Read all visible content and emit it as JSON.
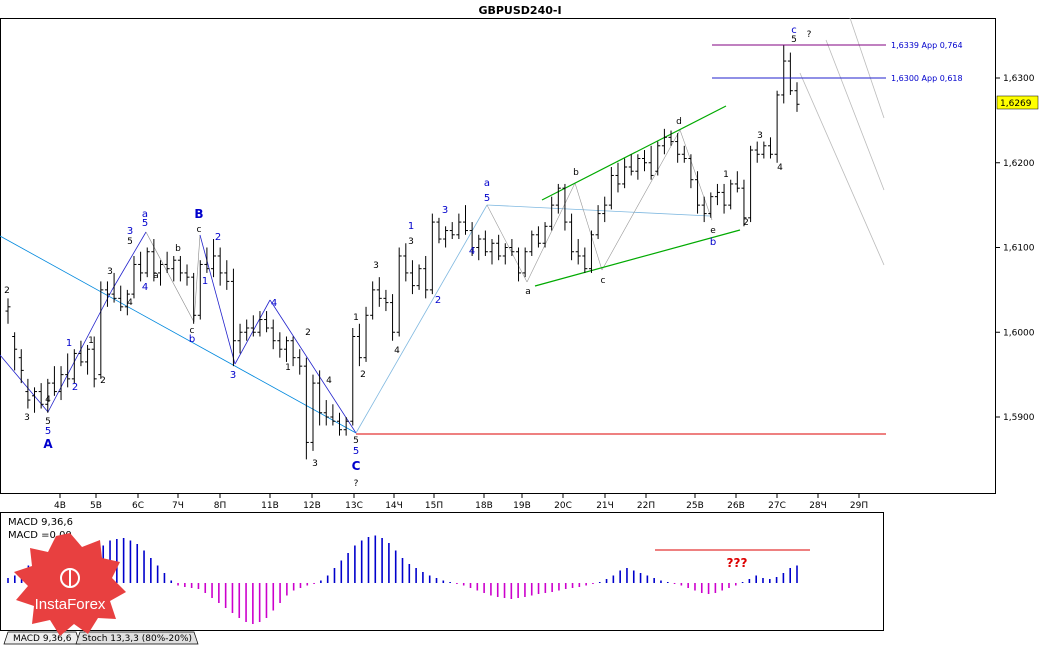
{
  "chart_data": [
    {
      "type": "candlestick",
      "title": "GBPUSD240-I",
      "y_ticks": [
        "1,5900",
        "1,6000",
        "1,6100",
        "1,6200",
        "1,6300"
      ],
      "ylim": [
        1.584,
        1.634
      ],
      "current_price": "1,6269",
      "x_ticks": [
        "4В",
        "5В",
        "6С",
        "7Ч",
        "8П",
        "11В",
        "12В",
        "13С",
        "14Ч",
        "15П",
        "18В",
        "19В",
        "20С",
        "21Ч",
        "22П",
        "25В",
        "26В",
        "27С",
        "28Ч",
        "29П"
      ],
      "bars": [
        {
          "o": 1.6025,
          "h": 1.604,
          "l": 1.601,
          "c": 1.603
        },
        {
          "o": 1.5995,
          "h": 1.6,
          "l": 1.5955,
          "c": 1.598
        },
        {
          "o": 1.597,
          "h": 1.598,
          "l": 1.594,
          "c": 1.5955
        },
        {
          "o": 1.593,
          "h": 1.5945,
          "l": 1.591,
          "c": 1.592
        },
        {
          "o": 1.5925,
          "h": 1.5935,
          "l": 1.5905,
          "c": 1.593
        },
        {
          "o": 1.593,
          "h": 1.594,
          "l": 1.591,
          "c": 1.5915
        },
        {
          "o": 1.5915,
          "h": 1.5945,
          "l": 1.5905,
          "c": 1.594
        },
        {
          "o": 1.594,
          "h": 1.596,
          "l": 1.5925,
          "c": 1.593
        },
        {
          "o": 1.593,
          "h": 1.596,
          "l": 1.592,
          "c": 1.595
        },
        {
          "o": 1.595,
          "h": 1.5975,
          "l": 1.5935,
          "c": 1.5945
        },
        {
          "o": 1.5945,
          "h": 1.598,
          "l": 1.594,
          "c": 1.5975
        },
        {
          "o": 1.5975,
          "h": 1.599,
          "l": 1.596,
          "c": 1.5965
        },
        {
          "o": 1.5965,
          "h": 1.5985,
          "l": 1.595,
          "c": 1.598
        },
        {
          "o": 1.598,
          "h": 1.5995,
          "l": 1.5935,
          "c": 1.5945
        },
        {
          "o": 1.595,
          "h": 1.606,
          "l": 1.5945,
          "c": 1.605
        },
        {
          "o": 1.605,
          "h": 1.606,
          "l": 1.603,
          "c": 1.6045
        },
        {
          "o": 1.6045,
          "h": 1.607,
          "l": 1.6035,
          "c": 1.604
        },
        {
          "o": 1.604,
          "h": 1.6055,
          "l": 1.6025,
          "c": 1.603
        },
        {
          "o": 1.603,
          "h": 1.605,
          "l": 1.602,
          "c": 1.6045
        },
        {
          "o": 1.6045,
          "h": 1.609,
          "l": 1.604,
          "c": 1.608
        },
        {
          "o": 1.608,
          "h": 1.6095,
          "l": 1.606,
          "c": 1.607
        },
        {
          "o": 1.607,
          "h": 1.61,
          "l": 1.6065,
          "c": 1.6095
        },
        {
          "o": 1.6095,
          "h": 1.611,
          "l": 1.606,
          "c": 1.607
        },
        {
          "o": 1.607,
          "h": 1.6085,
          "l": 1.6055,
          "c": 1.608
        },
        {
          "o": 1.608,
          "h": 1.6095,
          "l": 1.607,
          "c": 1.6075
        },
        {
          "o": 1.6075,
          "h": 1.609,
          "l": 1.606,
          "c": 1.6085
        },
        {
          "o": 1.6085,
          "h": 1.609,
          "l": 1.606,
          "c": 1.607
        },
        {
          "o": 1.607,
          "h": 1.608,
          "l": 1.6055,
          "c": 1.6065
        },
        {
          "o": 1.6065,
          "h": 1.607,
          "l": 1.601,
          "c": 1.602
        },
        {
          "o": 1.602,
          "h": 1.6085,
          "l": 1.6015,
          "c": 1.608
        },
        {
          "o": 1.608,
          "h": 1.61,
          "l": 1.607,
          "c": 1.6075
        },
        {
          "o": 1.6075,
          "h": 1.611,
          "l": 1.6065,
          "c": 1.609
        },
        {
          "o": 1.609,
          "h": 1.61,
          "l": 1.6055,
          "c": 1.607
        },
        {
          "o": 1.607,
          "h": 1.6085,
          "l": 1.605,
          "c": 1.606
        },
        {
          "o": 1.606,
          "h": 1.6075,
          "l": 1.596,
          "c": 1.599
        },
        {
          "o": 1.599,
          "h": 1.601,
          "l": 1.5975,
          "c": 1.6
        },
        {
          "o": 1.6,
          "h": 1.6015,
          "l": 1.599,
          "c": 1.6005
        },
        {
          "o": 1.6005,
          "h": 1.602,
          "l": 1.5995,
          "c": 1.6
        },
        {
          "o": 1.6,
          "h": 1.6025,
          "l": 1.5995,
          "c": 1.6015
        },
        {
          "o": 1.6015,
          "h": 1.6025,
          "l": 1.6,
          "c": 1.6005
        },
        {
          "o": 1.6005,
          "h": 1.6015,
          "l": 1.598,
          "c": 1.599
        },
        {
          "o": 1.599,
          "h": 1.6,
          "l": 1.597,
          "c": 1.598
        },
        {
          "o": 1.598,
          "h": 1.5995,
          "l": 1.5965,
          "c": 1.599
        },
        {
          "o": 1.599,
          "h": 1.5995,
          "l": 1.596,
          "c": 1.597
        },
        {
          "o": 1.597,
          "h": 1.598,
          "l": 1.595,
          "c": 1.596
        },
        {
          "o": 1.596,
          "h": 1.597,
          "l": 1.585,
          "c": 1.587
        },
        {
          "o": 1.587,
          "h": 1.595,
          "l": 1.586,
          "c": 1.594
        },
        {
          "o": 1.594,
          "h": 1.5955,
          "l": 1.589,
          "c": 1.5905
        },
        {
          "o": 1.5905,
          "h": 1.592,
          "l": 1.589,
          "c": 1.59
        },
        {
          "o": 1.59,
          "h": 1.5915,
          "l": 1.589,
          "c": 1.5895
        },
        {
          "o": 1.5895,
          "h": 1.5905,
          "l": 1.5878,
          "c": 1.5885
        },
        {
          "o": 1.5885,
          "h": 1.59,
          "l": 1.5878,
          "c": 1.5895
        },
        {
          "o": 1.5895,
          "h": 1.6005,
          "l": 1.589,
          "c": 1.5995
        },
        {
          "o": 1.5995,
          "h": 1.601,
          "l": 1.596,
          "c": 1.597
        },
        {
          "o": 1.597,
          "h": 1.603,
          "l": 1.5965,
          "c": 1.602
        },
        {
          "o": 1.602,
          "h": 1.606,
          "l": 1.6015,
          "c": 1.605
        },
        {
          "o": 1.605,
          "h": 1.6065,
          "l": 1.603,
          "c": 1.604
        },
        {
          "o": 1.604,
          "h": 1.605,
          "l": 1.6025,
          "c": 1.6035
        },
        {
          "o": 1.6035,
          "h": 1.6045,
          "l": 1.599,
          "c": 1.6
        },
        {
          "o": 1.6,
          "h": 1.61,
          "l": 1.5995,
          "c": 1.609
        },
        {
          "o": 1.609,
          "h": 1.6105,
          "l": 1.606,
          "c": 1.607
        },
        {
          "o": 1.607,
          "h": 1.6085,
          "l": 1.6045,
          "c": 1.6055
        },
        {
          "o": 1.6055,
          "h": 1.608,
          "l": 1.605,
          "c": 1.6075
        },
        {
          "o": 1.6075,
          "h": 1.609,
          "l": 1.604,
          "c": 1.605
        },
        {
          "o": 1.605,
          "h": 1.614,
          "l": 1.6045,
          "c": 1.613
        },
        {
          "o": 1.613,
          "h": 1.6135,
          "l": 1.6105,
          "c": 1.611
        },
        {
          "o": 1.611,
          "h": 1.6125,
          "l": 1.61,
          "c": 1.612
        },
        {
          "o": 1.612,
          "h": 1.613,
          "l": 1.611,
          "c": 1.6115
        },
        {
          "o": 1.6115,
          "h": 1.614,
          "l": 1.611,
          "c": 1.613
        },
        {
          "o": 1.613,
          "h": 1.615,
          "l": 1.6115,
          "c": 1.612
        },
        {
          "o": 1.612,
          "h": 1.613,
          "l": 1.609,
          "c": 1.61
        },
        {
          "o": 1.61,
          "h": 1.6115,
          "l": 1.6085,
          "c": 1.611
        },
        {
          "o": 1.611,
          "h": 1.612,
          "l": 1.609,
          "c": 1.6095
        },
        {
          "o": 1.6095,
          "h": 1.611,
          "l": 1.608,
          "c": 1.6105
        },
        {
          "o": 1.6105,
          "h": 1.6115,
          "l": 1.6085,
          "c": 1.609
        },
        {
          "o": 1.609,
          "h": 1.6105,
          "l": 1.608,
          "c": 1.61
        },
        {
          "o": 1.61,
          "h": 1.611,
          "l": 1.609,
          "c": 1.6095
        },
        {
          "o": 1.6095,
          "h": 1.61,
          "l": 1.606,
          "c": 1.607
        },
        {
          "o": 1.607,
          "h": 1.61,
          "l": 1.6065,
          "c": 1.6095
        },
        {
          "o": 1.6095,
          "h": 1.612,
          "l": 1.609,
          "c": 1.6115
        },
        {
          "o": 1.6115,
          "h": 1.6125,
          "l": 1.61,
          "c": 1.6105
        },
        {
          "o": 1.6105,
          "h": 1.613,
          "l": 1.61,
          "c": 1.6125
        },
        {
          "o": 1.6125,
          "h": 1.616,
          "l": 1.612,
          "c": 1.615
        },
        {
          "o": 1.615,
          "h": 1.6175,
          "l": 1.614,
          "c": 1.617
        },
        {
          "o": 1.617,
          "h": 1.6175,
          "l": 1.612,
          "c": 1.613
        },
        {
          "o": 1.613,
          "h": 1.614,
          "l": 1.6085,
          "c": 1.6095
        },
        {
          "o": 1.6095,
          "h": 1.611,
          "l": 1.608,
          "c": 1.609
        },
        {
          "o": 1.609,
          "h": 1.61,
          "l": 1.607,
          "c": 1.6075
        },
        {
          "o": 1.6075,
          "h": 1.612,
          "l": 1.607,
          "c": 1.6115
        },
        {
          "o": 1.6115,
          "h": 1.615,
          "l": 1.611,
          "c": 1.614
        },
        {
          "o": 1.614,
          "h": 1.616,
          "l": 1.613,
          "c": 1.615
        },
        {
          "o": 1.615,
          "h": 1.6195,
          "l": 1.6145,
          "c": 1.6185
        },
        {
          "o": 1.6185,
          "h": 1.62,
          "l": 1.6165,
          "c": 1.6175
        },
        {
          "o": 1.6175,
          "h": 1.6205,
          "l": 1.617,
          "c": 1.6195
        },
        {
          "o": 1.6195,
          "h": 1.621,
          "l": 1.6185,
          "c": 1.619
        },
        {
          "o": 1.619,
          "h": 1.621,
          "l": 1.618,
          "c": 1.6205
        },
        {
          "o": 1.6205,
          "h": 1.6215,
          "l": 1.619,
          "c": 1.62
        },
        {
          "o": 1.62,
          "h": 1.622,
          "l": 1.618,
          "c": 1.6185
        },
        {
          "o": 1.619,
          "h": 1.6225,
          "l": 1.6185,
          "c": 1.622
        },
        {
          "o": 1.622,
          "h": 1.624,
          "l": 1.621,
          "c": 1.623
        },
        {
          "o": 1.623,
          "h": 1.6238,
          "l": 1.622,
          "c": 1.6225
        },
        {
          "o": 1.6225,
          "h": 1.6235,
          "l": 1.62,
          "c": 1.621
        },
        {
          "o": 1.621,
          "h": 1.622,
          "l": 1.62,
          "c": 1.6205
        },
        {
          "o": 1.6205,
          "h": 1.621,
          "l": 1.617,
          "c": 1.618
        },
        {
          "o": 1.618,
          "h": 1.619,
          "l": 1.614,
          "c": 1.615
        },
        {
          "o": 1.615,
          "h": 1.616,
          "l": 1.613,
          "c": 1.614
        },
        {
          "o": 1.614,
          "h": 1.6165,
          "l": 1.6135,
          "c": 1.616
        },
        {
          "o": 1.616,
          "h": 1.6175,
          "l": 1.615,
          "c": 1.6165
        },
        {
          "o": 1.6165,
          "h": 1.6175,
          "l": 1.614,
          "c": 1.615
        },
        {
          "o": 1.615,
          "h": 1.618,
          "l": 1.6145,
          "c": 1.6175
        },
        {
          "o": 1.6175,
          "h": 1.619,
          "l": 1.6165,
          "c": 1.617
        },
        {
          "o": 1.617,
          "h": 1.618,
          "l": 1.6125,
          "c": 1.6135
        },
        {
          "o": 1.6135,
          "h": 1.622,
          "l": 1.613,
          "c": 1.6215
        },
        {
          "o": 1.6215,
          "h": 1.6225,
          "l": 1.62,
          "c": 1.621
        },
        {
          "o": 1.621,
          "h": 1.6225,
          "l": 1.6205,
          "c": 1.622
        },
        {
          "o": 1.622,
          "h": 1.623,
          "l": 1.6205,
          "c": 1.621
        },
        {
          "o": 1.621,
          "h": 1.6285,
          "l": 1.62,
          "c": 1.628
        },
        {
          "o": 1.628,
          "h": 1.6339,
          "l": 1.627,
          "c": 1.632
        },
        {
          "o": 1.632,
          "h": 1.633,
          "l": 1.628,
          "c": 1.6285
        },
        {
          "o": 1.6285,
          "h": 1.6295,
          "l": 1.626,
          "c": 1.6269
        }
      ],
      "levels": [
        {
          "value": 1.6339,
          "label": "1,6339 App 0,764"
        },
        {
          "value": 1.63,
          "label": "1,6300 App 0,618"
        },
        {
          "value": 1.5877,
          "label": ""
        }
      ]
    },
    {
      "type": "histogram",
      "legend": [
        "MACD 9,36,6",
        "MACD =0,00"
      ],
      "values": [
        0.1,
        0.15,
        0.25,
        0.35,
        0.42,
        0.4,
        0.3,
        0.2,
        0.15,
        0.15,
        0.2,
        0.3,
        0.45,
        0.6,
        0.75,
        0.85,
        0.88,
        0.9,
        0.85,
        0.78,
        0.65,
        0.5,
        0.35,
        0.2,
        0.05,
        -0.05,
        -0.08,
        -0.1,
        -0.12,
        -0.2,
        -0.3,
        -0.4,
        -0.5,
        -0.6,
        -0.7,
        -0.78,
        -0.82,
        -0.78,
        -0.7,
        -0.55,
        -0.4,
        -0.25,
        -0.15,
        -0.1,
        -0.05,
        -0.02,
        0.05,
        0.15,
        0.3,
        0.45,
        0.6,
        0.75,
        0.85,
        0.92,
        0.95,
        0.9,
        0.8,
        0.65,
        0.5,
        0.38,
        0.3,
        0.22,
        0.15,
        0.1,
        0.05,
        0.02,
        -0.02,
        -0.05,
        -0.1,
        -0.15,
        -0.2,
        -0.25,
        -0.28,
        -0.3,
        -0.32,
        -0.3,
        -0.28,
        -0.25,
        -0.22,
        -0.2,
        -0.18,
        -0.15,
        -0.12,
        -0.1,
        -0.08,
        -0.05,
        -0.02,
        0.02,
        0.08,
        0.15,
        0.25,
        0.3,
        0.25,
        0.2,
        0.15,
        0.1,
        0.05,
        0.02,
        -0.02,
        -0.05,
        -0.1,
        -0.15,
        -0.2,
        -0.22,
        -0.2,
        -0.15,
        -0.1,
        -0.05,
        0.02,
        0.08,
        0.15,
        0.1,
        0.08,
        0.12,
        0.2,
        0.3,
        0.35
      ],
      "annotation": "???",
      "tabs": [
        "MACD 9,36,6",
        "Stoch 13,3,3 (80%-20%)"
      ]
    }
  ],
  "wave_labels": {
    "A": "A",
    "B": "B",
    "C": "C",
    "q": "?",
    "n1": "1",
    "n2": "2",
    "n3": "3",
    "n4": "4",
    "n5": "5",
    "a": "a",
    "b": "b",
    "c": "c",
    "d": "d",
    "e": "e"
  },
  "logo": {
    "text": "InstaForex"
  },
  "colors": {
    "wave_blue": "#2222cc",
    "trend_blue": "#0088dd",
    "channel_green": "#00aa00",
    "fib_purple": "#800080",
    "level_red": "#dd0000",
    "macd_pos": "#0000cc",
    "macd_neg": "#cc00cc",
    "logo_red": "#e84040"
  }
}
